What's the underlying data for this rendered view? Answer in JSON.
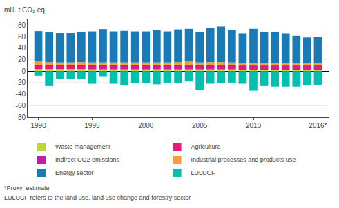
{
  "chart_data": {
    "type": "bar",
    "stacked": true,
    "ylabel": "mill. t CO₂.eq",
    "x": [
      1990,
      1991,
      1992,
      1993,
      1994,
      1995,
      1996,
      1997,
      1998,
      1999,
      2000,
      2001,
      2002,
      2003,
      2004,
      2005,
      2006,
      2007,
      2008,
      2009,
      2010,
      2011,
      2012,
      2013,
      2014,
      2015,
      2016
    ],
    "xlim": [
      1989,
      2017
    ],
    "xticks": [
      1990,
      1995,
      2000,
      2005,
      2010,
      {
        "value": 2016,
        "label": "2016*"
      }
    ],
    "ylim": [
      -80,
      90
    ],
    "yticks": [
      -80,
      -60,
      -40,
      -20,
      0,
      20,
      40,
      60,
      80
    ],
    "grid": true,
    "legend": "bottom",
    "series": [
      {
        "name": "Waste management",
        "color": "#bcd63c",
        "values": [
          3.5,
          3.5,
          3.5,
          3.5,
          3.5,
          3.0,
          3.0,
          3.0,
          3.0,
          3.0,
          3.0,
          3.0,
          3.0,
          3.0,
          3.0,
          3.0,
          3.0,
          3.0,
          3.0,
          2.5,
          2.5,
          2.5,
          2.5,
          2.5,
          2.5,
          2.5,
          2.5
        ]
      },
      {
        "name": "Agriculture",
        "color": "#e8197c",
        "values": [
          6.0,
          5.5,
          5.5,
          5.5,
          5.5,
          5.5,
          5.5,
          5.5,
          5.5,
          5.5,
          5.5,
          5.5,
          5.5,
          5.5,
          5.5,
          5.5,
          5.5,
          5.5,
          5.5,
          5.5,
          5.5,
          5.5,
          5.5,
          5.5,
          5.5,
          5.5,
          5.5
        ]
      },
      {
        "name": "Indirect CO2 emissions",
        "color": "#c020a0",
        "values": [
          1.5,
          1.5,
          1.5,
          1.5,
          1.5,
          1.5,
          1.5,
          1.5,
          1.5,
          1.5,
          1.5,
          1.5,
          1.5,
          1.5,
          1.5,
          1.5,
          1.5,
          1.5,
          1.5,
          1.5,
          1.5,
          1.5,
          1.5,
          1.5,
          1.5,
          1.5,
          1.5
        ]
      },
      {
        "name": "Industrial processes and products use",
        "color": "#f4a030",
        "values": [
          5.5,
          5.0,
          4.5,
          4.5,
          5.0,
          5.0,
          5.0,
          5.0,
          5.0,
          5.0,
          5.0,
          5.0,
          5.0,
          5.5,
          6.5,
          5.0,
          5.5,
          5.5,
          5.0,
          4.0,
          5.0,
          4.5,
          4.0,
          4.0,
          4.0,
          4.0,
          4.5
        ]
      },
      {
        "name": "Energy sector",
        "color": "#1a7ab5",
        "values": [
          53,
          52,
          51,
          51,
          53,
          54,
          58,
          54,
          55,
          54,
          54,
          56,
          54,
          57,
          57,
          53,
          60,
          62,
          57,
          52,
          59,
          54,
          55,
          52,
          48,
          45,
          45
        ]
      },
      {
        "name": "LULUCF",
        "color": "#00c0b0",
        "values": [
          -8,
          -26,
          -13,
          -13,
          -13,
          -22,
          -10,
          -22,
          -24,
          -21,
          -21,
          -23,
          -20,
          -21,
          -18,
          -33,
          -22,
          -21,
          -20,
          -22,
          -34,
          -26,
          -27,
          -27,
          -27,
          -25,
          -24
        ]
      }
    ],
    "annotations": [
      "*Proxy  estimate",
      "LULUCF refers to the land use, land use change and forestry sector"
    ]
  }
}
